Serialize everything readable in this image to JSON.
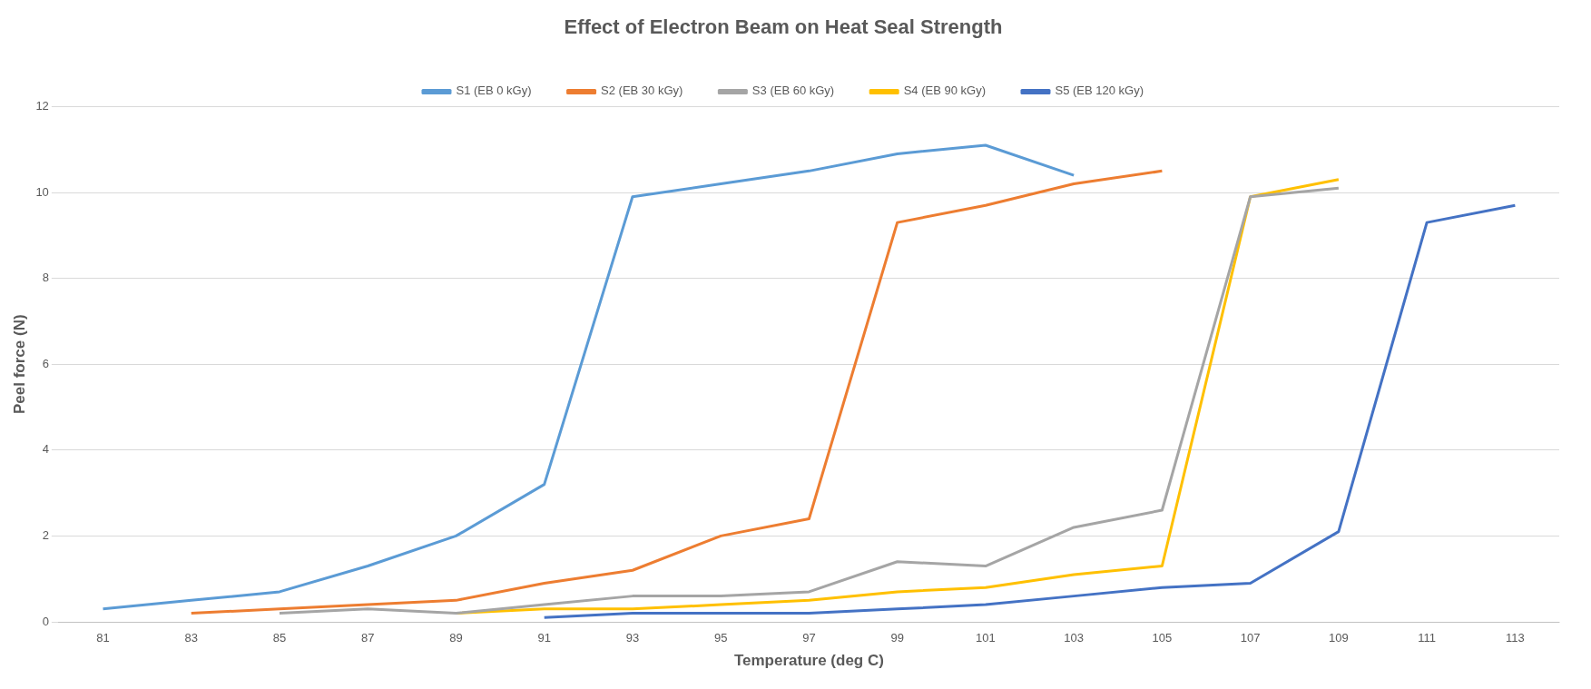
{
  "chart_data": {
    "type": "line",
    "title": "Effect of Electron Beam on Heat Seal Strength",
    "xlabel": "Temperature (deg C)",
    "ylabel": "Peel force (N)",
    "categories": [
      "81",
      "83",
      "85",
      "87",
      "89",
      "91",
      "93",
      "95",
      "97",
      "99",
      "101",
      "103",
      "105",
      "107",
      "109",
      "111",
      "113"
    ],
    "series": [
      {
        "name": "S1 (EB 0 kGy)",
        "color": "#5b9bd5",
        "values": [
          0.3,
          0.5,
          0.7,
          1.3,
          2.0,
          3.2,
          9.9,
          10.2,
          10.5,
          10.9,
          11.1,
          10.4,
          null,
          null,
          null,
          null,
          null
        ]
      },
      {
        "name": "S2 (EB 30 kGy)",
        "color": "#ed7d31",
        "values": [
          null,
          0.2,
          0.3,
          0.4,
          0.5,
          0.9,
          1.2,
          2.0,
          2.4,
          9.3,
          9.7,
          10.2,
          10.5,
          null,
          null,
          null,
          null
        ]
      },
      {
        "name": "S3 (EB 60 kGy)",
        "color": "#a5a5a5",
        "values": [
          null,
          null,
          0.2,
          0.3,
          0.2,
          0.4,
          0.6,
          0.6,
          0.7,
          1.4,
          1.3,
          2.2,
          2.6,
          9.9,
          10.1,
          null,
          null
        ]
      },
      {
        "name": "S4 (EB 90 kGy)",
        "color": "#ffc000",
        "values": [
          null,
          null,
          null,
          null,
          0.2,
          0.3,
          0.3,
          0.4,
          0.5,
          0.7,
          0.8,
          1.1,
          1.3,
          9.9,
          10.3,
          null,
          null
        ]
      },
      {
        "name": "S5 (EB 120 kGy)",
        "color": "#4472c4",
        "values": [
          null,
          null,
          null,
          null,
          null,
          0.1,
          0.2,
          0.2,
          0.2,
          0.3,
          0.4,
          0.6,
          0.8,
          0.9,
          2.1,
          9.3,
          9.7
        ]
      }
    ],
    "ylim": [
      0,
      12
    ],
    "yticks": [
      0,
      2,
      4,
      6,
      8,
      10,
      12
    ],
    "grid": "y",
    "legend": "top",
    "marker": "none",
    "line_style": "solid"
  }
}
